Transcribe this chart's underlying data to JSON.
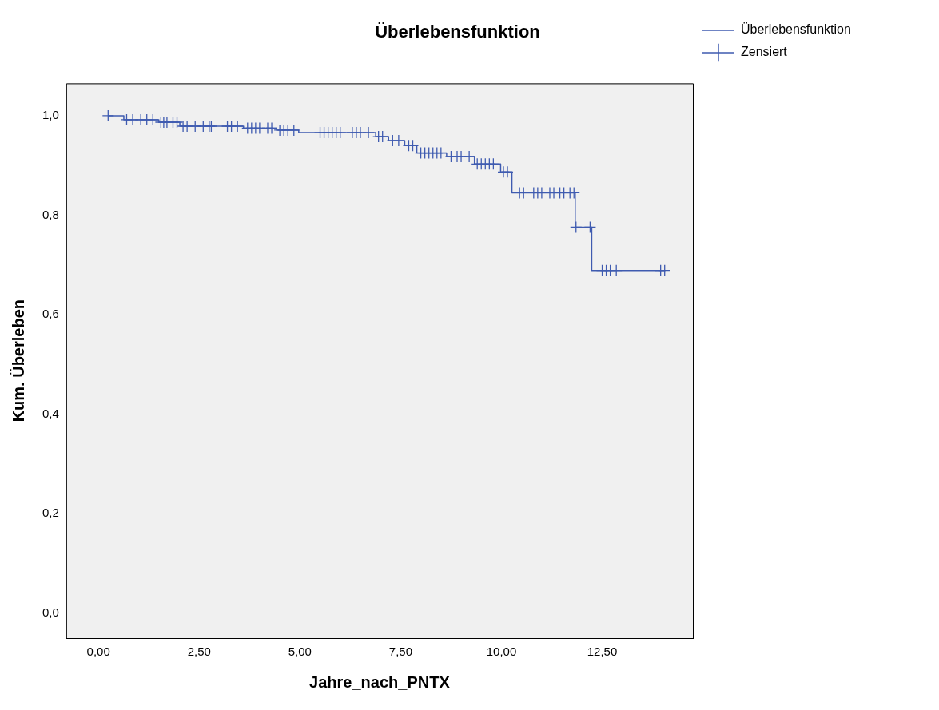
{
  "chart_data": {
    "type": "line",
    "title": "Überlebensfunktion",
    "xlabel": "Jahre_nach_PNTX",
    "ylabel": "Kum. Überleben",
    "xlim": [
      -0.8,
      14.75
    ],
    "ylim": [
      -0.05,
      1.065
    ],
    "xticks": [
      {
        "value": 0,
        "label": "0,00"
      },
      {
        "value": 2.5,
        "label": "2,50"
      },
      {
        "value": 5,
        "label": "5,00"
      },
      {
        "value": 7.5,
        "label": "7,50"
      },
      {
        "value": 10,
        "label": "10,00"
      },
      {
        "value": 12.5,
        "label": "12,50"
      }
    ],
    "yticks": [
      {
        "value": 0,
        "label": "0,0"
      },
      {
        "value": 0.2,
        "label": "0,2"
      },
      {
        "value": 0.4,
        "label": "0,4"
      },
      {
        "value": 0.6,
        "label": "0,6"
      },
      {
        "value": 0.8,
        "label": "0,8"
      },
      {
        "value": 1,
        "label": "1,0"
      }
    ],
    "grid": false,
    "legend": "top right",
    "series": [
      {
        "name": "Überlebensfunktion",
        "color": "#3f5bb0",
        "marker": "none",
        "x": [
          0.24,
          0.63,
          0.63,
          1.5,
          1.5,
          2.02,
          2.02,
          3.6,
          3.6,
          4.42,
          4.42,
          4.97,
          4.97,
          6.88,
          6.88,
          7.2,
          7.2,
          7.6,
          7.6,
          7.9,
          7.9,
          8.64,
          8.64,
          9.33,
          9.33,
          9.98,
          9.98,
          10.26,
          10.26,
          11.83,
          11.83,
          12.24,
          12.24,
          14.05
        ],
        "values": [
          1.0,
          1.0,
          0.992,
          0.992,
          0.987,
          0.987,
          0.979,
          0.979,
          0.975,
          0.975,
          0.971,
          0.971,
          0.966,
          0.966,
          0.958,
          0.958,
          0.95,
          0.95,
          0.94,
          0.94,
          0.925,
          0.925,
          0.918,
          0.918,
          0.903,
          0.903,
          0.887,
          0.887,
          0.845,
          0.845,
          0.776,
          0.776,
          0.689,
          0.689
        ]
      },
      {
        "name": "Zensiert",
        "type": "scatter",
        "color": "#3f5bb0",
        "marker": "cross",
        "x": [
          0.24,
          0.7,
          0.85,
          1.05,
          1.2,
          1.35,
          1.55,
          1.62,
          1.7,
          1.85,
          1.95,
          2.1,
          2.2,
          2.4,
          2.6,
          2.75,
          2.8,
          3.2,
          3.3,
          3.45,
          3.7,
          3.8,
          3.9,
          4.0,
          4.2,
          4.3,
          4.5,
          4.6,
          4.7,
          4.85,
          5.5,
          5.6,
          5.7,
          5.8,
          5.9,
          6.0,
          6.3,
          6.4,
          6.5,
          6.7,
          6.95,
          7.05,
          7.3,
          7.45,
          7.7,
          7.8,
          8.0,
          8.1,
          8.2,
          8.3,
          8.4,
          8.5,
          8.75,
          8.9,
          9.0,
          9.2,
          9.4,
          9.5,
          9.6,
          9.7,
          9.8,
          10.05,
          10.15,
          10.45,
          10.55,
          10.8,
          10.9,
          11.0,
          11.2,
          11.3,
          11.45,
          11.55,
          11.7,
          11.8,
          11.85,
          12.2,
          12.5,
          12.6,
          12.7,
          12.85,
          13.95,
          14.05
        ],
        "values": [
          1.0,
          0.992,
          0.992,
          0.992,
          0.992,
          0.992,
          0.987,
          0.987,
          0.987,
          0.987,
          0.987,
          0.979,
          0.979,
          0.979,
          0.979,
          0.979,
          0.979,
          0.979,
          0.979,
          0.979,
          0.975,
          0.975,
          0.975,
          0.975,
          0.975,
          0.975,
          0.971,
          0.971,
          0.971,
          0.971,
          0.966,
          0.966,
          0.966,
          0.966,
          0.966,
          0.966,
          0.966,
          0.966,
          0.966,
          0.966,
          0.958,
          0.958,
          0.95,
          0.95,
          0.94,
          0.94,
          0.925,
          0.925,
          0.925,
          0.925,
          0.925,
          0.925,
          0.918,
          0.918,
          0.918,
          0.918,
          0.903,
          0.903,
          0.903,
          0.903,
          0.903,
          0.887,
          0.887,
          0.845,
          0.845,
          0.845,
          0.845,
          0.845,
          0.845,
          0.845,
          0.845,
          0.845,
          0.845,
          0.845,
          0.776,
          0.776,
          0.689,
          0.689,
          0.689,
          0.689,
          0.689,
          0.689
        ]
      }
    ]
  }
}
